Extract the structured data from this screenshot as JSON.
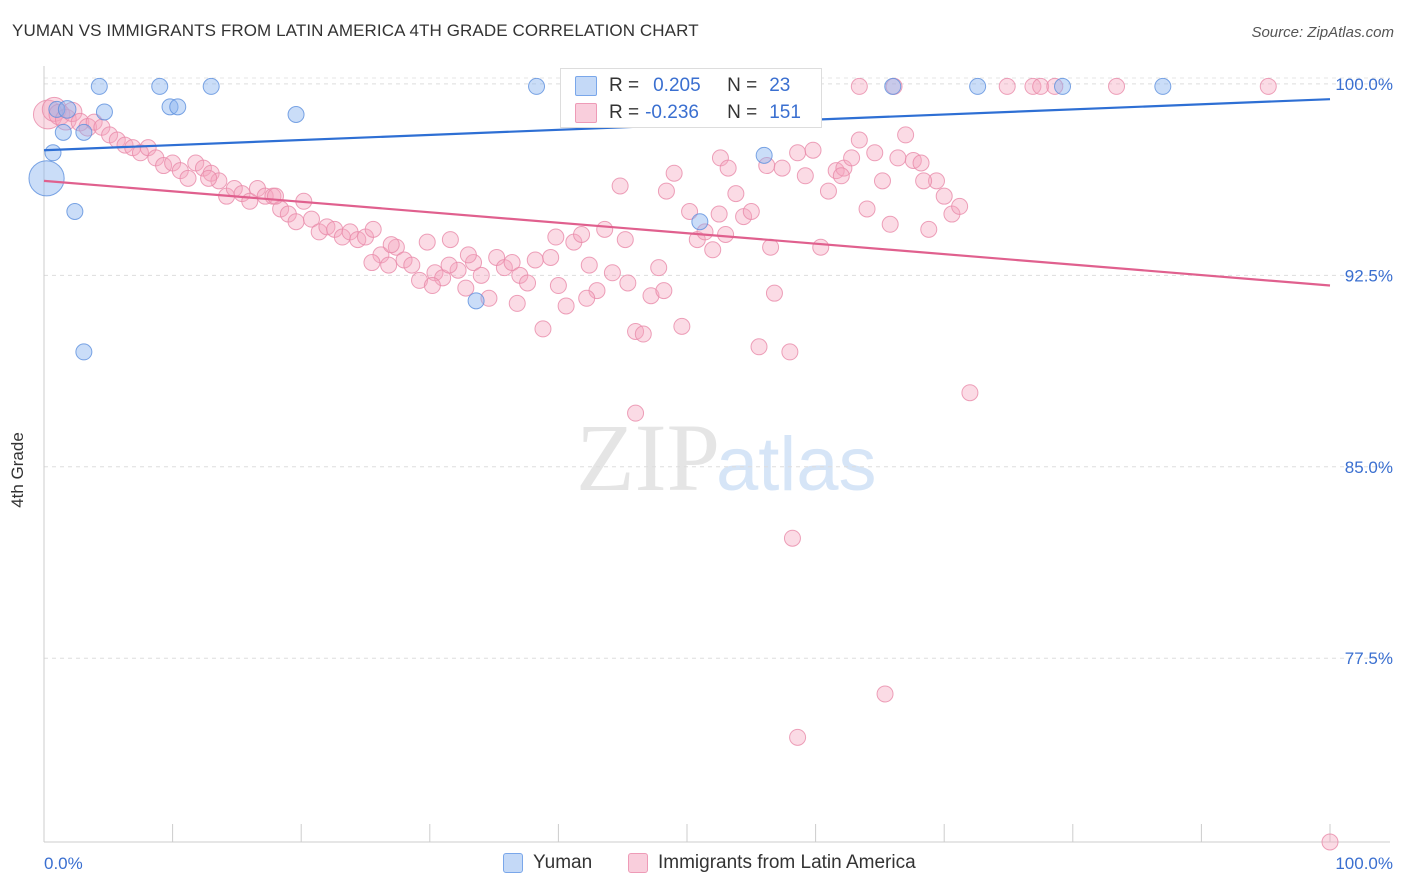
{
  "title": "YUMAN VS IMMIGRANTS FROM LATIN AMERICA 4TH GRADE CORRELATION CHART",
  "source": "Source: ZipAtlas.com",
  "watermark": {
    "zip": "ZIP",
    "atlas": "atlas"
  },
  "legend_stats": {
    "r_label": "R =",
    "n_label": "N =",
    "series": [
      {
        "r": "0.205",
        "n": "23",
        "color": "#8ab4f0"
      },
      {
        "r": "-0.236",
        "n": "151",
        "color": "#f4a6be"
      }
    ]
  },
  "chart_data": {
    "type": "scatter",
    "title": "YUMAN VS IMMIGRANTS FROM LATIN AMERICA 4TH GRADE CORRELATION CHART",
    "xlabel": "",
    "ylabel": "4th Grade",
    "xlim": [
      0,
      100
    ],
    "ylim": [
      70.3,
      100.7
    ],
    "x_tick_labels": [
      "0.0%",
      "100.0%"
    ],
    "y_ticks": [
      100.0,
      92.5,
      85.0,
      77.5
    ],
    "y_tick_labels": [
      "100.0%",
      "92.5%",
      "85.0%",
      "77.5%"
    ],
    "grid": true,
    "legend_position": "bottom",
    "series": [
      {
        "name": "Yuman",
        "color": "#8ab4f0",
        "stroke": "#5b8fdd",
        "line_color": "#2e6fd4",
        "trend": [
          [
            0,
            97.4
          ],
          [
            100,
            99.4
          ]
        ],
        "points": [
          [
            0.2,
            96.3,
            2.2
          ],
          [
            0.7,
            97.3,
            1
          ],
          [
            1.0,
            99.0,
            1
          ],
          [
            1.5,
            98.1,
            1
          ],
          [
            1.8,
            99.0,
            1.1
          ],
          [
            2.4,
            95.0,
            1
          ],
          [
            3.1,
            98.1,
            1
          ],
          [
            3.1,
            89.5,
            1
          ],
          [
            4.3,
            99.9,
            1
          ],
          [
            4.7,
            98.9,
            1
          ],
          [
            9.0,
            99.9,
            1
          ],
          [
            9.8,
            99.1,
            1
          ],
          [
            10.4,
            99.1,
            1
          ],
          [
            13.0,
            99.9,
            1
          ],
          [
            19.6,
            98.8,
            1
          ],
          [
            33.6,
            91.5,
            1
          ],
          [
            38.3,
            99.9,
            1
          ],
          [
            51.0,
            94.6,
            1
          ],
          [
            56.0,
            97.2,
            1
          ],
          [
            66.0,
            99.9,
            1
          ],
          [
            72.6,
            99.9,
            1
          ],
          [
            79.2,
            99.9,
            1
          ],
          [
            87.0,
            99.9,
            1
          ]
        ]
      },
      {
        "name": "Immigrants from Latin America",
        "color": "#f4a6be",
        "stroke": "#e98aa9",
        "line_color": "#e0608e",
        "trend": [
          [
            0,
            96.2
          ],
          [
            100,
            92.1
          ]
        ],
        "points": [
          [
            0.3,
            98.8,
            1.8
          ],
          [
            0.8,
            99.0,
            1.5
          ],
          [
            1.2,
            98.8,
            1.3
          ],
          [
            1.7,
            98.6,
            1.3
          ],
          [
            2.2,
            98.9,
            1.2
          ],
          [
            2.8,
            98.5,
            1.1
          ],
          [
            3.4,
            98.3,
            1.1
          ],
          [
            3.9,
            98.5,
            1
          ],
          [
            4.5,
            98.3,
            1
          ],
          [
            5.1,
            98.0,
            1
          ],
          [
            5.7,
            97.8,
            1
          ],
          [
            6.3,
            97.6,
            1
          ],
          [
            6.9,
            97.5,
            1
          ],
          [
            7.5,
            97.3,
            1
          ],
          [
            8.1,
            97.5,
            1
          ],
          [
            8.7,
            97.1,
            1
          ],
          [
            9.3,
            96.8,
            1
          ],
          [
            10.0,
            96.9,
            1
          ],
          [
            10.6,
            96.6,
            1
          ],
          [
            11.2,
            96.3,
            1
          ],
          [
            11.8,
            96.9,
            1
          ],
          [
            12.4,
            96.7,
            1
          ],
          [
            13.0,
            96.5,
            1
          ],
          [
            13.6,
            96.2,
            1
          ],
          [
            14.2,
            95.6,
            1
          ],
          [
            14.8,
            95.9,
            1
          ],
          [
            15.4,
            95.7,
            1
          ],
          [
            16.0,
            95.4,
            1
          ],
          [
            16.6,
            95.9,
            1
          ],
          [
            17.2,
            95.6,
            1
          ],
          [
            17.8,
            95.6,
            1
          ],
          [
            18.4,
            95.1,
            1
          ],
          [
            19.0,
            94.9,
            1
          ],
          [
            19.6,
            94.6,
            1
          ],
          [
            20.2,
            95.4,
            1
          ],
          [
            20.8,
            94.7,
            1
          ],
          [
            21.4,
            94.2,
            1
          ],
          [
            22.0,
            94.4,
            1
          ],
          [
            22.6,
            94.3,
            1
          ],
          [
            23.2,
            94.0,
            1
          ],
          [
            23.8,
            94.2,
            1
          ],
          [
            24.4,
            93.9,
            1
          ],
          [
            25.0,
            94.0,
            1
          ],
          [
            25.6,
            94.3,
            1
          ],
          [
            26.2,
            93.3,
            1
          ],
          [
            26.8,
            92.9,
            1
          ],
          [
            27.4,
            93.6,
            1
          ],
          [
            28.0,
            93.1,
            1
          ],
          [
            28.6,
            92.9,
            1
          ],
          [
            29.2,
            92.3,
            1
          ],
          [
            29.8,
            93.8,
            1
          ],
          [
            30.4,
            92.6,
            1
          ],
          [
            31.0,
            92.4,
            1
          ],
          [
            31.6,
            93.9,
            1
          ],
          [
            32.2,
            92.7,
            1
          ],
          [
            32.8,
            92.0,
            1
          ],
          [
            33.4,
            93.0,
            1
          ],
          [
            34.0,
            92.5,
            1
          ],
          [
            34.6,
            91.6,
            1
          ],
          [
            35.2,
            93.2,
            1
          ],
          [
            35.8,
            92.8,
            1
          ],
          [
            36.4,
            93.0,
            1
          ],
          [
            37.0,
            92.5,
            1
          ],
          [
            37.6,
            92.2,
            1
          ],
          [
            38.2,
            93.1,
            1
          ],
          [
            38.8,
            90.4,
            1
          ],
          [
            39.4,
            93.2,
            1
          ],
          [
            40.0,
            92.1,
            1
          ],
          [
            40.6,
            91.3,
            1
          ],
          [
            41.2,
            93.8,
            1
          ],
          [
            41.8,
            94.1,
            1
          ],
          [
            42.4,
            92.9,
            1
          ],
          [
            43.0,
            91.9,
            1
          ],
          [
            43.6,
            94.3,
            1
          ],
          [
            44.2,
            92.6,
            1
          ],
          [
            44.8,
            96.0,
            1
          ],
          [
            45.4,
            92.2,
            1
          ],
          [
            46.0,
            90.3,
            1
          ],
          [
            46.6,
            90.2,
            1
          ],
          [
            47.2,
            91.7,
            1
          ],
          [
            47.8,
            92.8,
            1
          ],
          [
            48.4,
            95.8,
            1
          ],
          [
            49.0,
            96.5,
            1
          ],
          [
            49.6,
            90.5,
            1
          ],
          [
            50.2,
            95.0,
            1
          ],
          [
            50.8,
            93.9,
            1
          ],
          [
            51.4,
            94.2,
            1
          ],
          [
            52.0,
            93.5,
            1
          ],
          [
            52.6,
            97.1,
            1
          ],
          [
            53.2,
            96.7,
            1
          ],
          [
            53.8,
            95.7,
            1
          ],
          [
            54.4,
            94.8,
            1
          ],
          [
            55.0,
            95.0,
            1
          ],
          [
            55.6,
            89.7,
            1
          ],
          [
            56.2,
            96.8,
            1
          ],
          [
            56.8,
            91.8,
            1
          ],
          [
            57.4,
            96.7,
            1
          ],
          [
            58.0,
            89.5,
            1
          ],
          [
            58.6,
            97.3,
            1
          ],
          [
            59.2,
            96.4,
            1
          ],
          [
            59.8,
            97.4,
            1
          ],
          [
            60.4,
            93.6,
            1
          ],
          [
            61.0,
            95.8,
            1
          ],
          [
            61.6,
            96.6,
            1
          ],
          [
            62.2,
            96.7,
            1
          ],
          [
            62.8,
            97.1,
            1
          ],
          [
            63.4,
            97.8,
            1
          ],
          [
            64.0,
            95.1,
            1
          ],
          [
            64.6,
            97.3,
            1
          ],
          [
            65.2,
            96.2,
            1
          ],
          [
            65.8,
            94.5,
            1
          ],
          [
            66.4,
            97.1,
            1
          ],
          [
            67.0,
            98.0,
            1
          ],
          [
            67.6,
            97.0,
            1
          ],
          [
            68.2,
            96.9,
            1
          ],
          [
            68.8,
            94.3,
            1
          ],
          [
            69.4,
            96.2,
            1
          ],
          [
            70.0,
            95.6,
            1
          ],
          [
            70.6,
            94.9,
            1
          ],
          [
            71.2,
            95.2,
            1
          ],
          [
            72.0,
            87.9,
            1
          ],
          [
            46.0,
            87.1,
            1
          ],
          [
            58.2,
            82.2,
            1
          ],
          [
            65.4,
            76.1,
            1
          ],
          [
            58.6,
            74.4,
            1
          ],
          [
            100.0,
            70.3,
            1
          ],
          [
            25.5,
            93.0,
            1
          ],
          [
            30.2,
            92.1,
            1
          ],
          [
            36.8,
            91.4,
            1
          ],
          [
            42.2,
            91.6,
            1
          ],
          [
            48.2,
            91.9,
            1
          ],
          [
            52.5,
            94.9,
            1
          ],
          [
            56.5,
            93.6,
            1
          ],
          [
            62.0,
            96.4,
            1
          ],
          [
            68.4,
            96.2,
            1
          ],
          [
            63.4,
            99.9,
            1
          ],
          [
            66.1,
            99.9,
            1
          ],
          [
            74.9,
            99.9,
            1
          ],
          [
            76.9,
            99.9,
            1
          ],
          [
            77.5,
            99.9,
            1
          ],
          [
            78.6,
            99.9,
            1
          ],
          [
            83.4,
            99.9,
            1
          ],
          [
            95.2,
            99.9,
            1
          ],
          [
            12.8,
            96.3,
            1
          ],
          [
            18.0,
            95.6,
            1
          ],
          [
            27.0,
            93.7,
            1
          ],
          [
            33.0,
            93.3,
            1
          ],
          [
            39.8,
            94.0,
            1
          ],
          [
            45.2,
            93.9,
            1
          ],
          [
            53.0,
            94.1,
            1
          ],
          [
            31.5,
            92.9,
            1
          ]
        ]
      }
    ]
  },
  "legend_bottom": [
    {
      "label": "Yuman",
      "fill": "#c4d9f7",
      "border": "#7aa7ea"
    },
    {
      "label": "Immigrants from Latin America",
      "fill": "#f9cedc",
      "border": "#ee9bb7"
    }
  ]
}
